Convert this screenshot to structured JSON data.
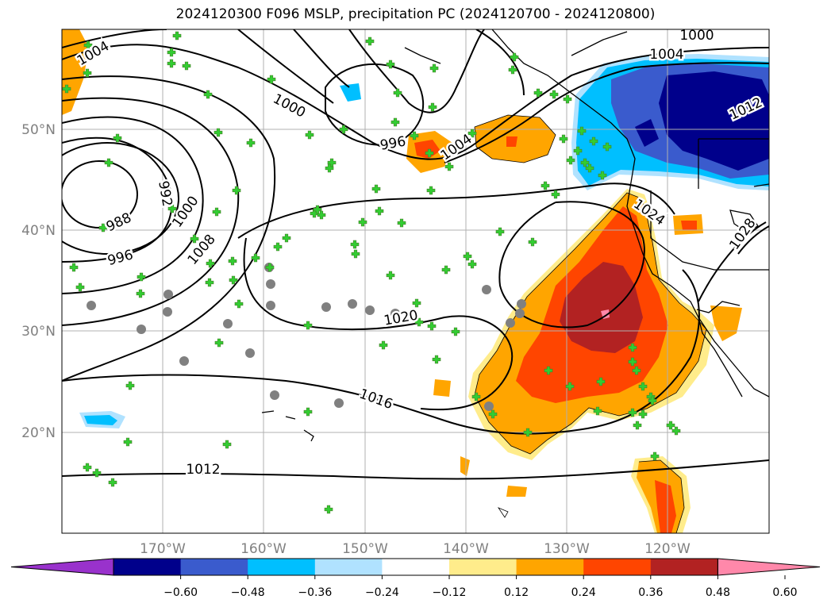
{
  "title": "2024120300 F096 MSLP, precipitation PC (2024120700 - 2024120800)",
  "lon_labels": [
    "170°W",
    "160°W",
    "150°W",
    "140°W",
    "130°W",
    "120°W"
  ],
  "lat_labels": [
    "50°N",
    "40°N",
    "30°N",
    "20°N"
  ],
  "isobar_labels": [
    {
      "text": "1000"
    },
    {
      "text": "1004"
    },
    {
      "text": "1004"
    },
    {
      "text": "1000"
    },
    {
      "text": "996"
    },
    {
      "text": "1004"
    },
    {
      "text": "1012"
    },
    {
      "text": "992"
    },
    {
      "text": "988"
    },
    {
      "text": "1000"
    },
    {
      "text": "996"
    },
    {
      "text": "1008"
    },
    {
      "text": "1024"
    },
    {
      "text": "1028"
    },
    {
      "text": "1020"
    },
    {
      "text": "1016"
    },
    {
      "text": "1012"
    }
  ],
  "colorbar": {
    "ticks": [
      "−0.60",
      "−0.48",
      "−0.36",
      "−0.24",
      "−0.12",
      "0.12",
      "0.24",
      "0.36",
      "0.48",
      "0.60"
    ],
    "colors": [
      "#9932cc",
      "#00008b",
      "#3a5bcd",
      "#00bfff",
      "#b0e2ff",
      "#ffffff",
      "#ffec8b",
      "#ffa500",
      "#ff4500",
      "#b22222",
      "#ff88aa"
    ]
  },
  "colors": {
    "land_grey_marker": "#808080",
    "green_marker": "#32cd32",
    "grid": "#b0b0b0",
    "isobar": "#000000"
  }
}
